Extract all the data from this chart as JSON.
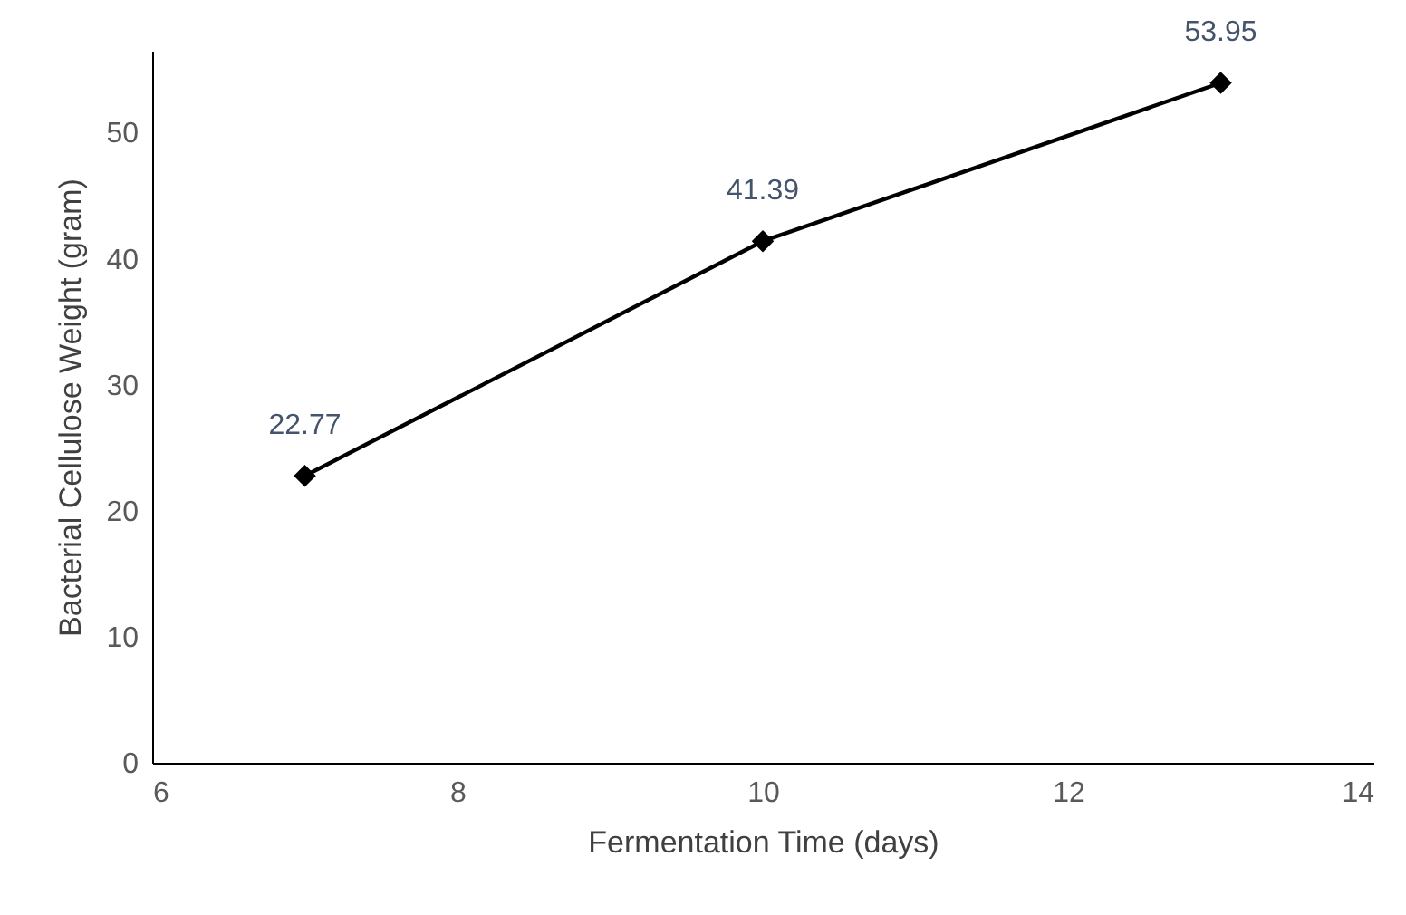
{
  "chart_data": {
    "type": "line",
    "xlabel": "Fermentation Time (days)",
    "ylabel": "Bacterial Cellulose Weight  (gram)",
    "x": [
      7,
      10,
      13
    ],
    "series": [
      {
        "color": "#000000",
        "values": [
          22.77,
          41.39,
          53.95
        ]
      }
    ],
    "xlim": [
      6,
      14
    ],
    "xticks": [
      6,
      8,
      10,
      12,
      14
    ],
    "ylim": [
      0,
      56.5
    ],
    "yticks": [
      0,
      10,
      20,
      30,
      40,
      50
    ],
    "marker": "diamond",
    "line_style": "solid",
    "data_labels": true
  }
}
